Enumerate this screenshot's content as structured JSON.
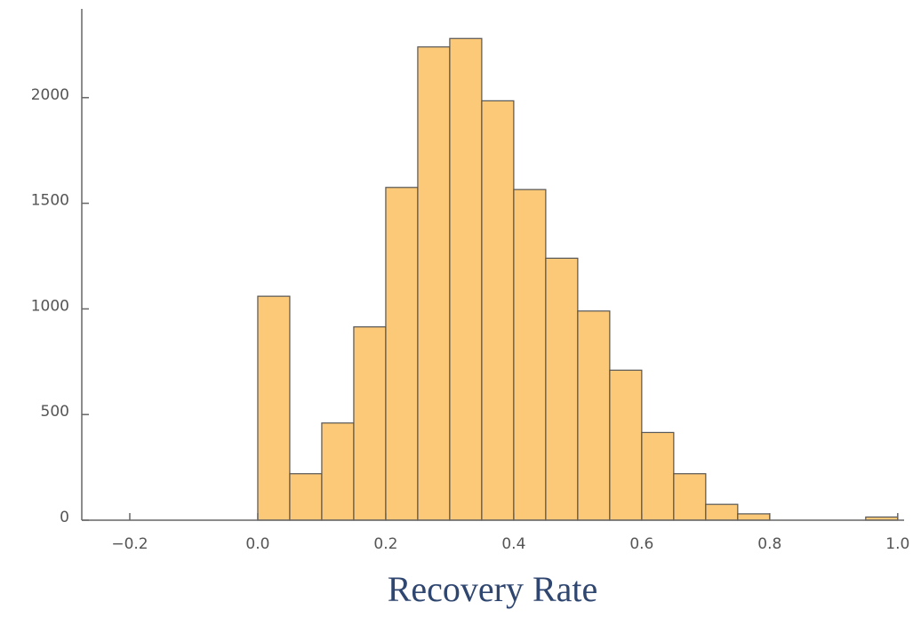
{
  "chart_data": {
    "type": "histogram",
    "x_label": "Recovery Rate",
    "bins": [
      0,
      0.05,
      0.1,
      0.15,
      0.2,
      0.25,
      0.3,
      0.35,
      0.4,
      0.45,
      0.5,
      0.55,
      0.6,
      0.65,
      0.7,
      0.75,
      0.8,
      0.85,
      0.9,
      0.95,
      1.0
    ],
    "values": [
      1060,
      220,
      460,
      915,
      1575,
      2240,
      2280,
      1985,
      1565,
      1240,
      990,
      710,
      415,
      220,
      75,
      30,
      0,
      0,
      0,
      15
    ],
    "color": "#fcc978",
    "edge_color": "#555555",
    "xlim": [
      -0.275,
      1.01
    ],
    "ylim": [
      0,
      2420
    ],
    "xticks": [
      {
        "value": -0.2,
        "label": "−0.2"
      },
      {
        "value": 0,
        "label": "0.0"
      },
      0.2,
      0.4,
      0.6,
      0.8,
      {
        "value": 1.0,
        "label": "1.0"
      }
    ],
    "yticks": [
      0,
      500,
      1000,
      1500,
      2000
    ]
  }
}
